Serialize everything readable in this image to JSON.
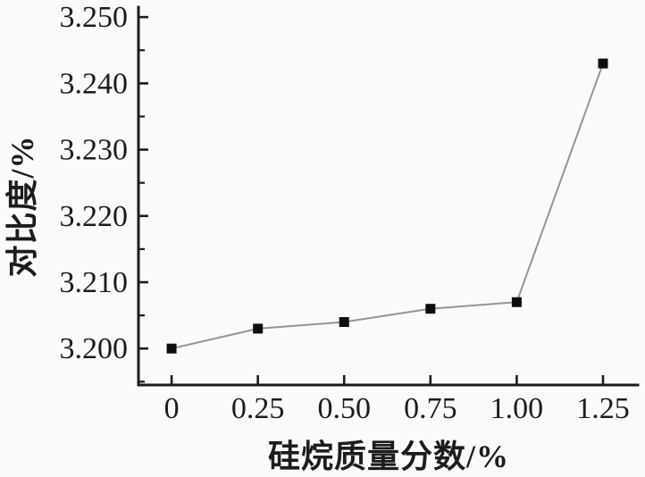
{
  "chart_data": {
    "type": "line",
    "title": "",
    "xlabel": "硅烷质量分数/%",
    "ylabel": "对比度/%",
    "x": [
      0,
      0.25,
      0.5,
      0.75,
      1.0,
      1.25
    ],
    "series": [
      {
        "name": "对比度",
        "values": [
          3.2,
          3.203,
          3.204,
          3.206,
          3.207,
          3.243
        ]
      }
    ],
    "xticks": {
      "values": [
        0,
        0.25,
        0.5,
        0.75,
        1.0,
        1.25
      ],
      "labels": [
        "0",
        "0.25",
        "0.50",
        "0.75",
        "1.00",
        "1.25"
      ]
    },
    "yticks": {
      "values": [
        3.2,
        3.21,
        3.22,
        3.23,
        3.24,
        3.25
      ],
      "labels": [
        "3.200",
        "3.210",
        "3.220",
        "3.230",
        "3.240",
        "3.250"
      ]
    },
    "yticks_minor": [
      3.195,
      3.205,
      3.215,
      3.225,
      3.235,
      3.245
    ],
    "xlim": [
      -0.096,
      1.351
    ],
    "ylim": [
      3.1945,
      3.2515
    ],
    "grid": false,
    "legend": false,
    "marker": "square",
    "marker_size": 11,
    "colors": {
      "line": "#8a9899",
      "marker": "#0d0d0d",
      "axis": "#1c1c1c",
      "text": "#1c1c1c",
      "background": "#fbfaf8"
    }
  }
}
